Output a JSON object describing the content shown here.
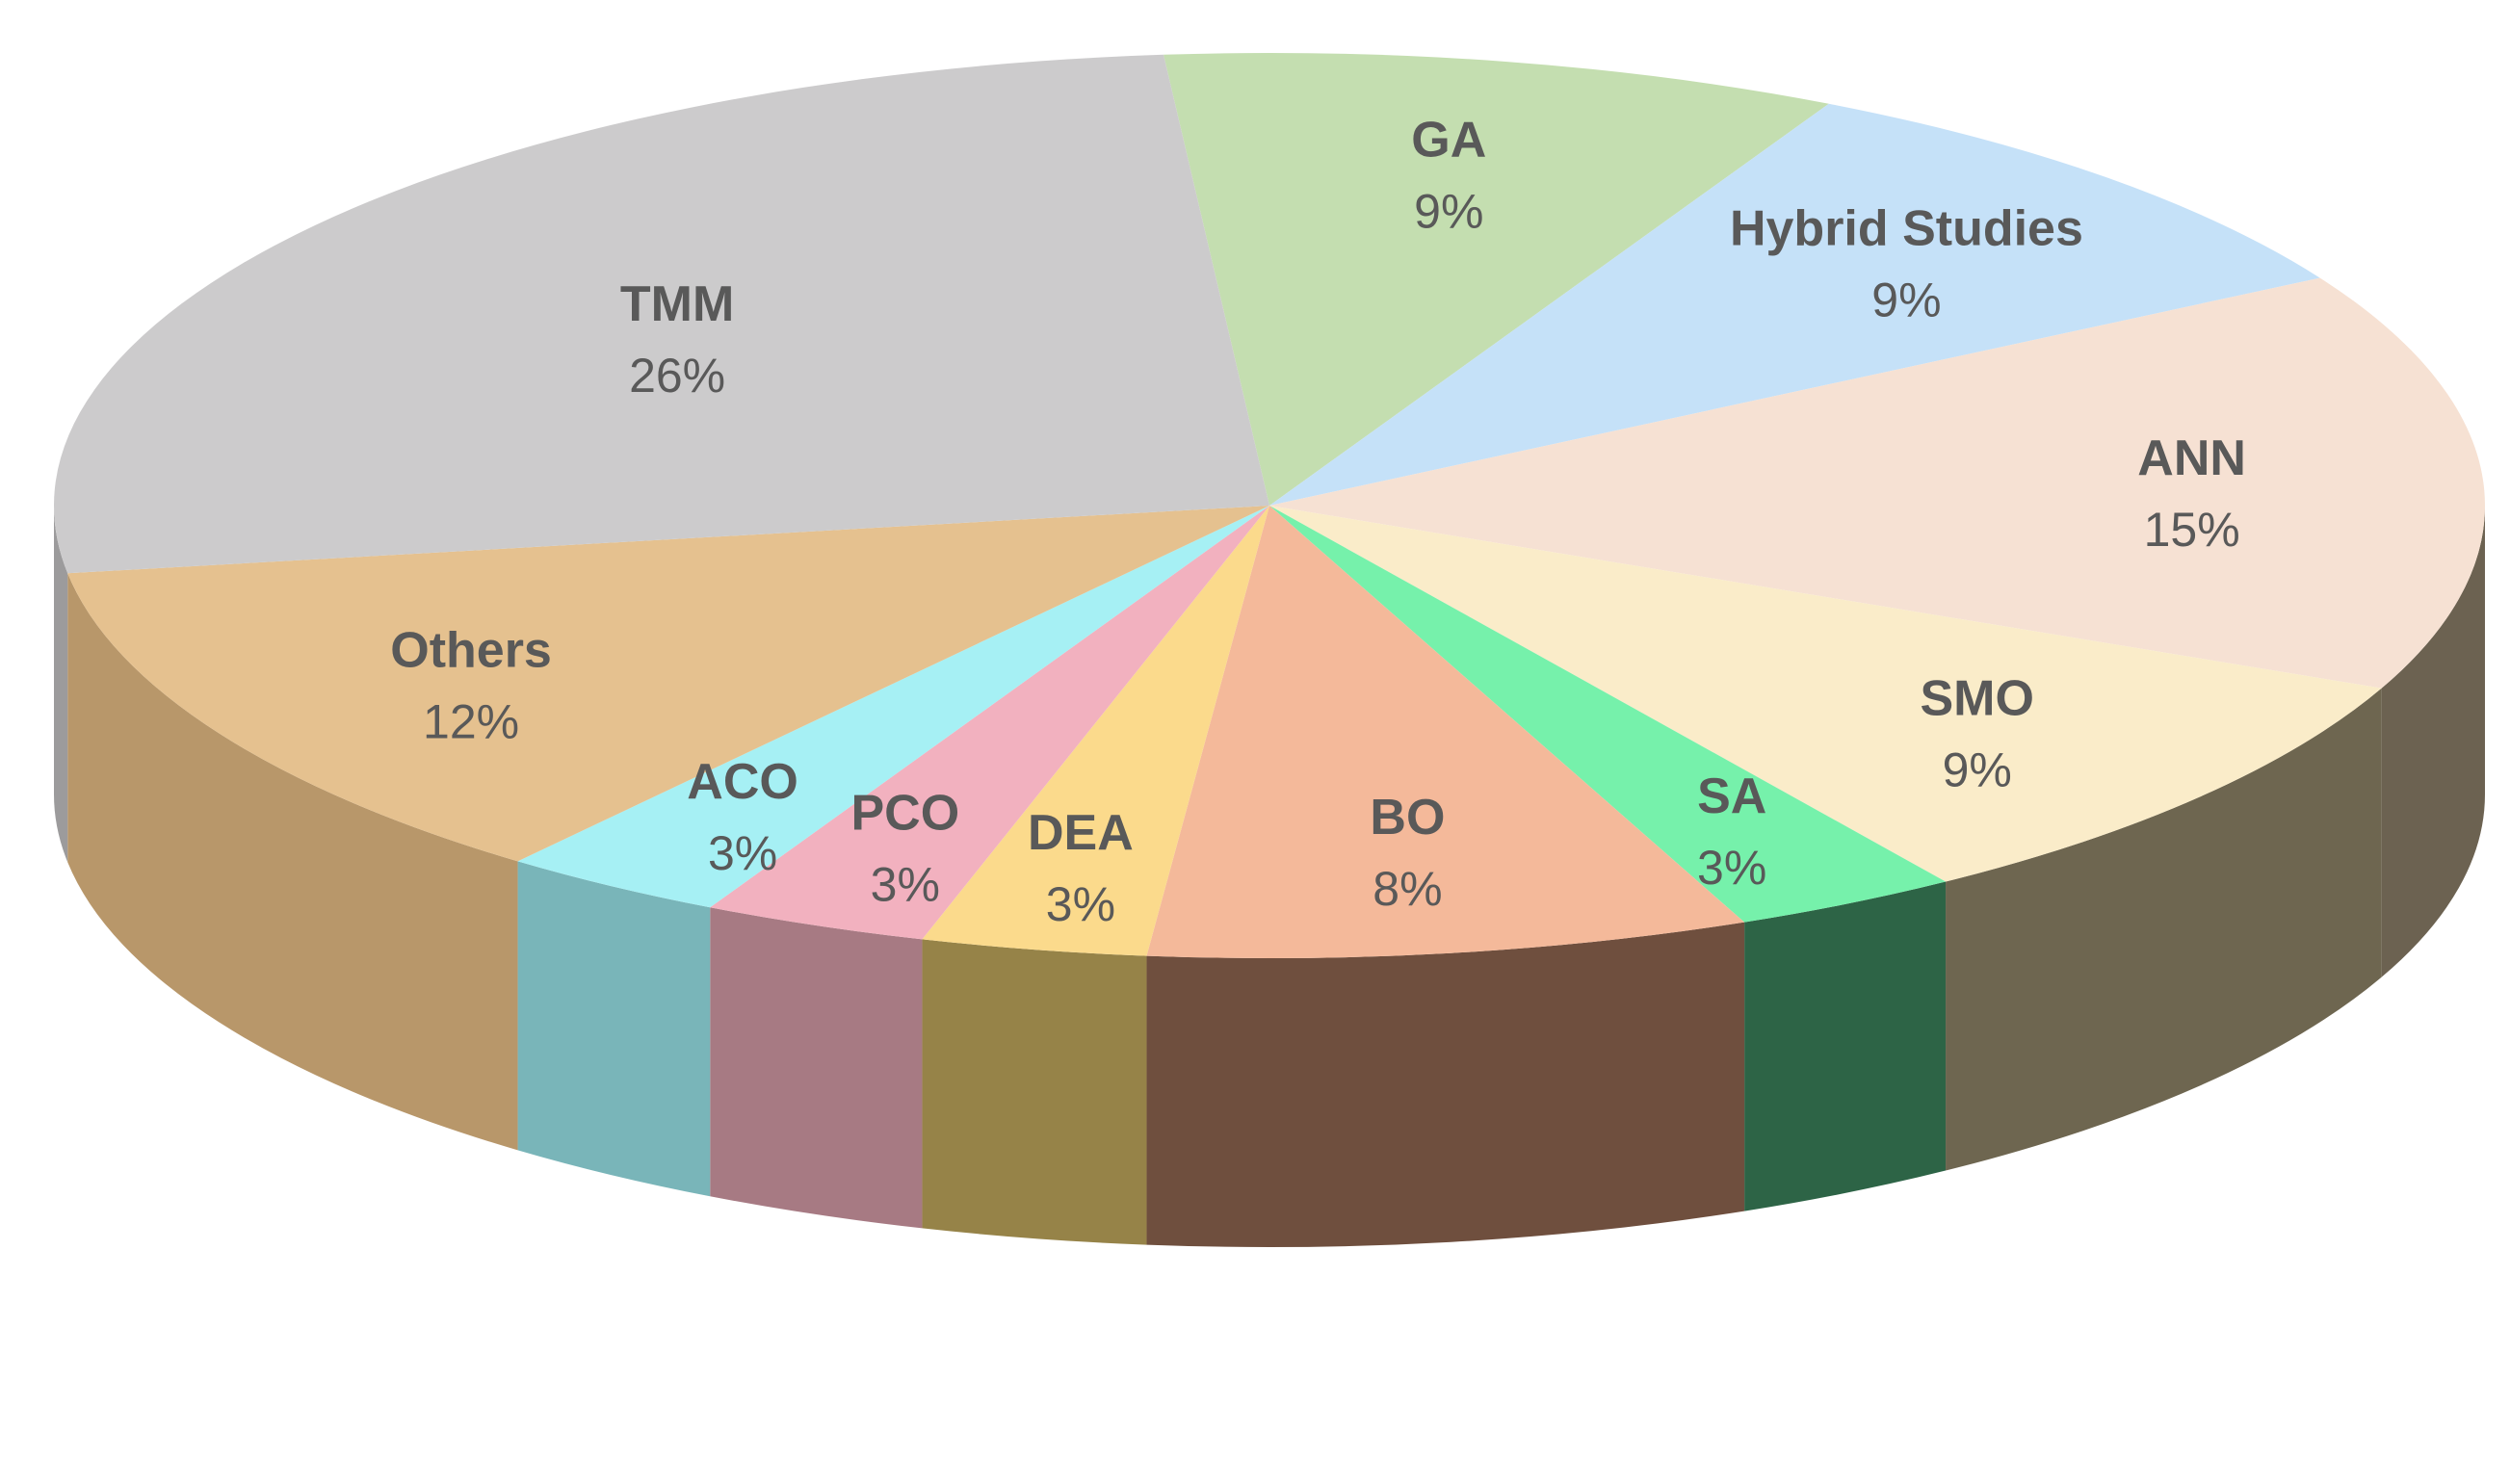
{
  "chart_data": {
    "type": "pie",
    "style": "3d",
    "title": "",
    "slices": [
      {
        "label": "GA",
        "value": 9,
        "value_label": "9%",
        "top_color": "#c4deb0",
        "side_color": "#8fa87c"
      },
      {
        "label": "Hybrid Studies",
        "value": 9,
        "value_label": "9%",
        "top_color": "#c5e1f8",
        "side_color": "#8aa4bb"
      },
      {
        "label": "ANN",
        "value": 15,
        "value_label": "15%",
        "top_color": "#f6e1d3",
        "side_color": "#6c6251"
      },
      {
        "label": "SMO",
        "value": 9,
        "value_label": "9%",
        "top_color": "#faecc9",
        "side_color": "#6e6650"
      },
      {
        "label": "SA",
        "value": 3,
        "value_label": "3%",
        "top_color": "#76f1ab",
        "side_color": "#2d6446"
      },
      {
        "label": "BO",
        "value": 8,
        "value_label": "8%",
        "top_color": "#f4b99a",
        "side_color": "#6f4f3e"
      },
      {
        "label": "DEA",
        "value": 3,
        "value_label": "3%",
        "top_color": "#fbda8c",
        "side_color": "#968348"
      },
      {
        "label": "PCO",
        "value": 3,
        "value_label": "3%",
        "top_color": "#f2b1bf",
        "side_color": "#a77a83"
      },
      {
        "label": "ACO",
        "value": 3,
        "value_label": "3%",
        "top_color": "#a6f0f4",
        "side_color": "#79b5b9"
      },
      {
        "label": "Others",
        "value": 12,
        "value_label": "12%",
        "top_color": "#e5c18f",
        "side_color": "#b8976a"
      },
      {
        "label": "TMM",
        "value": 26,
        "value_label": "26%",
        "top_color": "#cccbcc",
        "side_color": "#9c9b9c"
      }
    ]
  }
}
